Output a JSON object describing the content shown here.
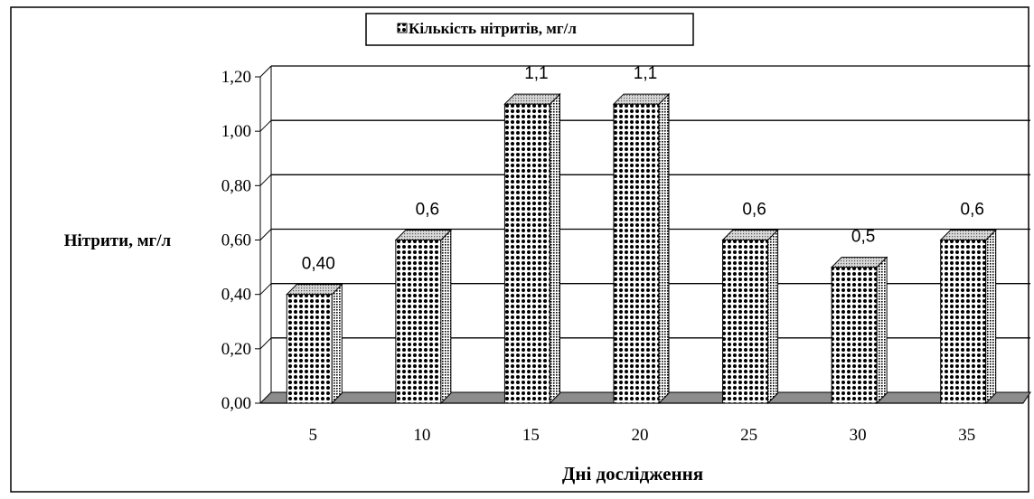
{
  "chart_data": {
    "type": "bar",
    "legend": "Кількість нітритів, мг/л",
    "legend_position": "top",
    "ylabel": "Нітрити, мг/л",
    "xlabel": "Дні дослідження",
    "categories": [
      "5",
      "10",
      "15",
      "20",
      "25",
      "30",
      "35"
    ],
    "values": [
      0.4,
      0.6,
      1.1,
      1.1,
      0.6,
      0.5,
      0.6
    ],
    "data_labels": [
      "0,40",
      "0,6",
      "1,1",
      "1,1",
      "0,6",
      "0,5",
      "0,6"
    ],
    "y_ticks": [
      "0,00",
      "0,20",
      "0,40",
      "0,60",
      "0,80",
      "1,00",
      "1,20"
    ],
    "ylim": [
      0,
      1.2
    ],
    "grid": true,
    "style": "3d-column, patterned fill"
  }
}
